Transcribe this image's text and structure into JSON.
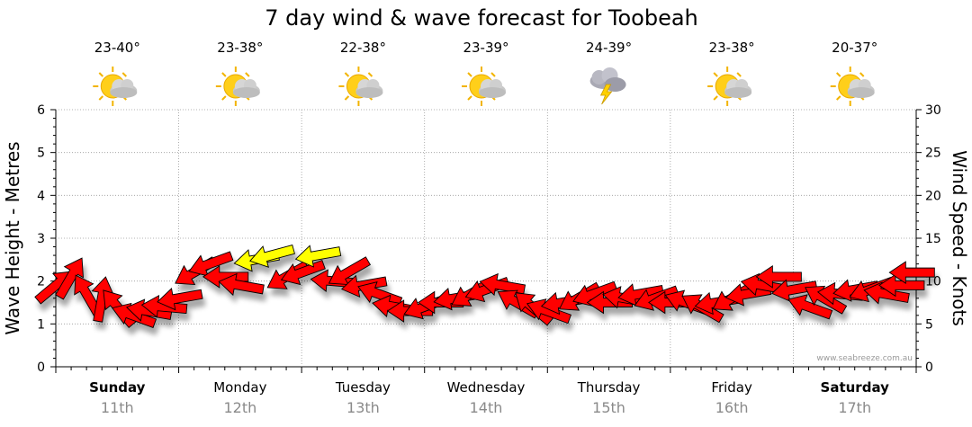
{
  "chart_data": {
    "type": "line",
    "title": "7 day wind & wave forecast for Toobeah",
    "ylabel_left": "Wave Height - Metres",
    "ylabel_right": "Wind Speed - Knots",
    "ylim_left": [
      0,
      6
    ],
    "ylim_right": [
      0,
      30
    ],
    "left_ticks": [
      "0",
      "1",
      "2",
      "3",
      "4",
      "5",
      "6"
    ],
    "right_ticks": [
      "0",
      "5",
      "10",
      "15",
      "20",
      "25",
      "30"
    ],
    "grid": true,
    "credit": "www.seabreeze.com.au",
    "days": [
      {
        "name": "Sunday",
        "date": "11th",
        "bold": true,
        "temp": "23-40°",
        "icon": "sun-cloud-icon"
      },
      {
        "name": "Monday",
        "date": "12th",
        "bold": false,
        "temp": "23-38°",
        "icon": "sun-cloud-icon"
      },
      {
        "name": "Tuesday",
        "date": "13th",
        "bold": false,
        "temp": "22-38°",
        "icon": "sun-cloud-icon"
      },
      {
        "name": "Wednesday",
        "date": "14th",
        "bold": false,
        "temp": "23-39°",
        "icon": "sun-cloud-icon"
      },
      {
        "name": "Thursday",
        "date": "15th",
        "bold": false,
        "temp": "24-39°",
        "icon": "storm-icon"
      },
      {
        "name": "Friday",
        "date": "16th",
        "bold": false,
        "temp": "23-38°",
        "icon": "sun-cloud-icon"
      },
      {
        "name": "Saturday",
        "date": "17th",
        "bold": true,
        "temp": "20-37°",
        "icon": "sun-cloud-icon"
      }
    ],
    "series": [
      {
        "kind": "wind-arrows",
        "colors": {
          "strong": "#ff0000",
          "gusty": "#ffff00",
          "outline": "#000000"
        },
        "x_unit": "hours from Sunday 00:00",
        "points": [
          {
            "t": 0,
            "speed": 9.5,
            "dir": 230,
            "gusty": false
          },
          {
            "t": 3,
            "speed": 10.5,
            "dir": 210,
            "gusty": false
          },
          {
            "t": 6,
            "speed": 8.5,
            "dir": 150,
            "gusty": false
          },
          {
            "t": 9,
            "speed": 8,
            "dir": 190,
            "gusty": false
          },
          {
            "t": 12,
            "speed": 7,
            "dir": 140,
            "gusty": false
          },
          {
            "t": 15,
            "speed": 6,
            "dir": 110,
            "gusty": false
          },
          {
            "t": 18,
            "speed": 6.5,
            "dir": 100,
            "gusty": false
          },
          {
            "t": 21,
            "speed": 7,
            "dir": 95,
            "gusty": false
          },
          {
            "t": 24,
            "speed": 8,
            "dir": 80,
            "gusty": false
          },
          {
            "t": 27,
            "speed": 11,
            "dir": 60,
            "gusty": false
          },
          {
            "t": 30,
            "speed": 12,
            "dir": 70,
            "gusty": false
          },
          {
            "t": 33,
            "speed": 10.5,
            "dir": 90,
            "gusty": false
          },
          {
            "t": 36,
            "speed": 9.5,
            "dir": 100,
            "gusty": false
          },
          {
            "t": 39,
            "speed": 12.5,
            "dir": 80,
            "gusty": true
          },
          {
            "t": 42,
            "speed": 13,
            "dir": 75,
            "gusty": true
          },
          {
            "t": 45,
            "speed": 10.5,
            "dir": 60,
            "gusty": false
          },
          {
            "t": 48,
            "speed": 11,
            "dir": 70,
            "gusty": false
          },
          {
            "t": 51,
            "speed": 13,
            "dir": 80,
            "gusty": true
          },
          {
            "t": 54,
            "speed": 10,
            "dir": 95,
            "gusty": false
          },
          {
            "t": 57,
            "speed": 11,
            "dir": 60,
            "gusty": false
          },
          {
            "t": 60,
            "speed": 9.5,
            "dir": 80,
            "gusty": false
          },
          {
            "t": 63,
            "speed": 8.5,
            "dir": 110,
            "gusty": false
          },
          {
            "t": 66,
            "speed": 7,
            "dir": 100,
            "gusty": false
          },
          {
            "t": 69,
            "speed": 6.5,
            "dir": 90,
            "gusty": false
          },
          {
            "t": 72,
            "speed": 7,
            "dir": 70,
            "gusty": false
          },
          {
            "t": 75,
            "speed": 7.5,
            "dir": 90,
            "gusty": false
          },
          {
            "t": 78,
            "speed": 8,
            "dir": 80,
            "gusty": false
          },
          {
            "t": 81,
            "speed": 8.5,
            "dir": 60,
            "gusty": false
          },
          {
            "t": 84,
            "speed": 9,
            "dir": 70,
            "gusty": false
          },
          {
            "t": 87,
            "speed": 9.5,
            "dir": 100,
            "gusty": false
          },
          {
            "t": 90,
            "speed": 7.5,
            "dir": 120,
            "gusty": false
          },
          {
            "t": 93,
            "speed": 7,
            "dir": 130,
            "gusty": false
          },
          {
            "t": 96,
            "speed": 6.5,
            "dir": 110,
            "gusty": false
          },
          {
            "t": 99,
            "speed": 7.5,
            "dir": 80,
            "gusty": false
          },
          {
            "t": 102,
            "speed": 8,
            "dir": 60,
            "gusty": false
          },
          {
            "t": 105,
            "speed": 8.5,
            "dir": 70,
            "gusty": false
          },
          {
            "t": 108,
            "speed": 7.5,
            "dir": 90,
            "gusty": false
          },
          {
            "t": 111,
            "speed": 8,
            "dir": 100,
            "gusty": false
          },
          {
            "t": 114,
            "speed": 8.5,
            "dir": 80,
            "gusty": false
          },
          {
            "t": 117,
            "speed": 8,
            "dir": 70,
            "gusty": false
          },
          {
            "t": 120,
            "speed": 7.5,
            "dir": 90,
            "gusty": false
          },
          {
            "t": 123,
            "speed": 7.5,
            "dir": 110,
            "gusty": false
          },
          {
            "t": 126,
            "speed": 7,
            "dir": 120,
            "gusty": false
          },
          {
            "t": 129,
            "speed": 7.5,
            "dir": 80,
            "gusty": false
          },
          {
            "t": 132,
            "speed": 8,
            "dir": 60,
            "gusty": false
          },
          {
            "t": 135,
            "speed": 8.5,
            "dir": 80,
            "gusty": false
          },
          {
            "t": 138,
            "speed": 9.5,
            "dir": 100,
            "gusty": false
          },
          {
            "t": 141,
            "speed": 10.5,
            "dir": 90,
            "gusty": false
          },
          {
            "t": 144,
            "speed": 9,
            "dir": 80,
            "gusty": false
          },
          {
            "t": 147,
            "speed": 7,
            "dir": 110,
            "gusty": false
          },
          {
            "t": 150,
            "speed": 8,
            "dir": 120,
            "gusty": false
          },
          {
            "t": 153,
            "speed": 8.5,
            "dir": 95,
            "gusty": false
          },
          {
            "t": 156,
            "speed": 9,
            "dir": 80,
            "gusty": false
          },
          {
            "t": 159,
            "speed": 9,
            "dir": 70,
            "gusty": false
          },
          {
            "t": 162,
            "speed": 8.5,
            "dir": 100,
            "gusty": false
          },
          {
            "t": 165,
            "speed": 9.5,
            "dir": 90,
            "gusty": false
          },
          {
            "t": 167,
            "speed": 11,
            "dir": 90,
            "gusty": false
          }
        ]
      }
    ]
  }
}
